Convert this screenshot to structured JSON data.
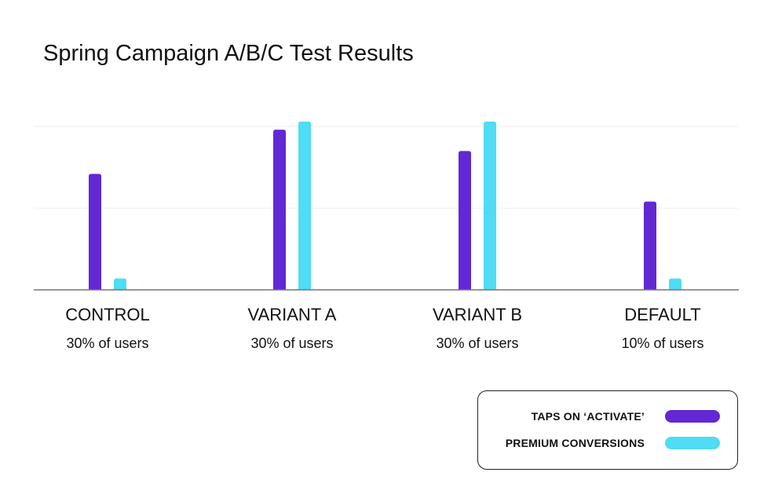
{
  "chart_data": {
    "type": "bar",
    "title": "Spring Campaign A/B/C Test Results",
    "categories": [
      "CONTROL",
      "VARIANT A",
      "VARIANT B",
      "DEFAULT"
    ],
    "category_notes": [
      "30% of users",
      "30% of users",
      "30% of users",
      "10% of users"
    ],
    "series": [
      {
        "name": "TAPS ON ‘ACTIVATE’",
        "color": "#6228d4",
        "values": [
          0.71,
          0.98,
          0.85,
          0.54
        ]
      },
      {
        "name": "PREMIUM CONVERSIONS",
        "color": "#4fdcf5",
        "values": [
          0.07,
          1.03,
          1.03,
          0.07
        ]
      }
    ],
    "ylim": [
      0,
      1
    ],
    "grid": true,
    "y_ticks_labeled": false,
    "legend_position": "bottom-right"
  }
}
